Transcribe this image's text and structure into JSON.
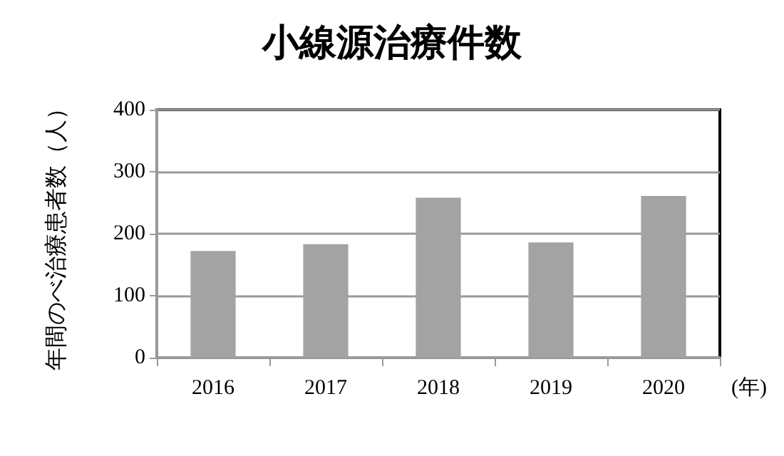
{
  "chart_data": {
    "type": "bar",
    "title": "小線源治療件数",
    "xlabel": "(年)",
    "ylabel": "年間のべ治療患者数（人）",
    "categories": [
      "2016",
      "2017",
      "2018",
      "2019",
      "2020"
    ],
    "values": [
      172,
      183,
      258,
      186,
      261
    ],
    "color": "#a2a3a2",
    "ylim": [
      0,
      400
    ],
    "yticks": [
      0,
      100,
      200,
      300,
      400
    ],
    "grid": "y"
  }
}
